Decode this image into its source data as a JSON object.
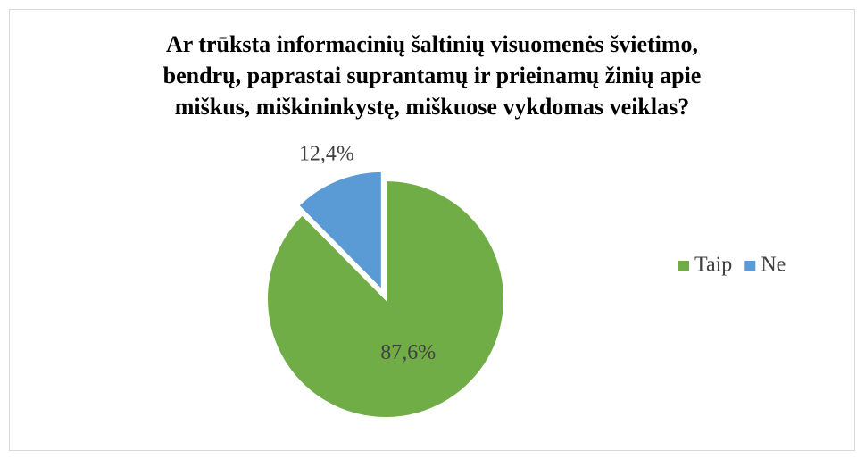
{
  "chart_data": {
    "type": "pie",
    "title": [
      "Ar trūksta informacinių šaltinių visuomenės švietimo,",
      "bendrų, paprastai suprantamų ir prieinamų žinių apie",
      "miškus, miškininkystę, miškuose vykdomas veiklas?"
    ],
    "categories": [
      "Taip",
      "Ne"
    ],
    "values": [
      87.6,
      12.4
    ],
    "value_labels": [
      "87,6%",
      "12,4%"
    ],
    "colors": [
      "#70ad47",
      "#5b9bd5"
    ],
    "legend": "right"
  }
}
